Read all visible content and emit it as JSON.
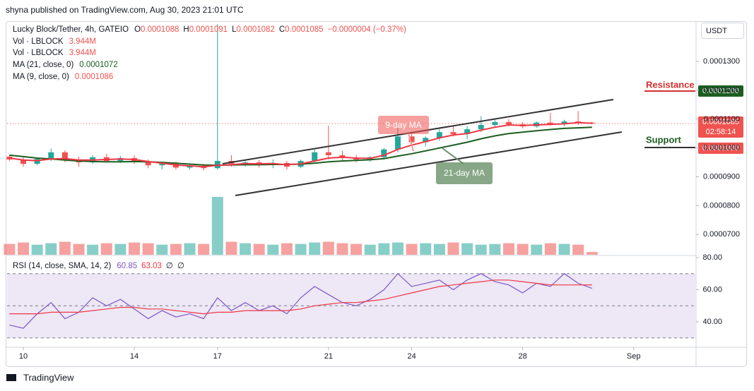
{
  "header": {
    "byline": "shyna published on TradingView.com, Aug 30, 2023 21:01 UTC",
    "symbol": "Lucky Block/Tether, 4h, GATEIO",
    "ohlc": [
      {
        "key": "O",
        "value": "0.0001088"
      },
      {
        "key": "H",
        "value": "0.0001091"
      },
      {
        "key": "L",
        "value": "0.0001082"
      },
      {
        "key": "C",
        "value": "0.0001085"
      }
    ],
    "change": "−0.0000004 (−0.37%)",
    "indicators": [
      {
        "label": "Vol · LBLOCK",
        "value": "3.944M"
      },
      {
        "label": "Vol · LBLOCK",
        "value": "3.944M"
      },
      {
        "label": "MA (21, close, 0)",
        "value": "0.0001072"
      },
      {
        "label": "MA (9, close, 0)",
        "value": "0.0001086"
      }
    ],
    "rsi_label": "RSI (14, close, SMA, 14, 2)",
    "rsi_values": [
      "60.85",
      "63.03",
      "∅",
      "∅"
    ]
  },
  "currency": "USDT",
  "price_labels": {
    "resistance": "0.0001200",
    "last": "0.0001085",
    "countdown": "02:58:14",
    "support": "0.0001000"
  },
  "annotations": {
    "resistance": "Resistance",
    "support": "Support",
    "ma9": "9-day MA",
    "ma21": "21-day MA"
  },
  "footer": "TradingView",
  "chart_data": {
    "type": "candlestick",
    "up_color": "#26a69a",
    "down_color": "#ef5350",
    "x": [
      9.5,
      10,
      10.5,
      11,
      11.5,
      12,
      12.5,
      13,
      13.5,
      14,
      14.5,
      15,
      15.5,
      16,
      16.5,
      17,
      17.5,
      18,
      18.5,
      19,
      19.5,
      20,
      20.5,
      21,
      21.5,
      22,
      22.5,
      23,
      23.5,
      24,
      24.5,
      25,
      25.5,
      26,
      26.5,
      27,
      27.5,
      28,
      28.5,
      29,
      29.5,
      30,
      30.5
    ],
    "xlim": [
      9.414,
      34.25
    ],
    "xticks": [
      10,
      14,
      17,
      21,
      24,
      28,
      {
        "value": 32,
        "label": "Sep"
      }
    ],
    "ylim": [
      6.27e-05,
      0.000144
    ],
    "yticks": [
      {
        "value": 7e-05,
        "label": "0.0000700"
      },
      {
        "value": 8e-05,
        "label": "0.0000800"
      },
      {
        "value": 9e-05,
        "label": "0.0000900"
      },
      {
        "value": 0.0001,
        "label": "0.0001000"
      },
      {
        "value": 0.00011,
        "label": "0.0001100"
      },
      {
        "value": 0.00012,
        "label": "0.0001200"
      },
      {
        "value": 0.00013,
        "label": "0.0001300"
      }
    ],
    "open": [
      9.7e-05,
      9.6e-05,
      9.45e-05,
      9.62e-05,
      9.85e-05,
      9.58e-05,
      9.5e-05,
      9.68e-05,
      9.55e-05,
      9.65e-05,
      9.52e-05,
      9.4e-05,
      9.45e-05,
      9.32e-05,
      9.38e-05,
      9.3e-05,
      9.55e-05,
      9.45e-05,
      9.5e-05,
      9.42e-05,
      9.48e-05,
      9.35e-05,
      9.55e-05,
      9.85e-05,
      9.75e-05,
      9.65e-05,
      9.6e-05,
      9.68e-05,
      9.95e-05,
      0.000104,
      0.000102,
      0.0001035,
      0.0001055,
      0.0001048,
      0.0001065,
      0.000108,
      0.000109,
      0.0001082,
      0.0001075,
      0.0001088,
      0.0001082,
      0.0001092,
      0.0001088
    ],
    "high": [
      9.75e-05,
      9.68e-05,
      9.65e-05,
      9.98e-05,
      9.92e-05,
      9.7e-05,
      9.75e-05,
      9.8e-05,
      9.72e-05,
      9.75e-05,
      9.6e-05,
      9.5e-05,
      9.52e-05,
      9.45e-05,
      9.45e-05,
      0.000143,
      9.75e-05,
      9.6e-05,
      9.58e-05,
      9.6e-05,
      9.55e-05,
      9.6e-05,
      9.95e-05,
      0.0001078,
      9.9e-05,
      9.75e-05,
      9.72e-05,
      0.0001,
      0.000107,
      0.000105,
      0.000104,
      0.0001065,
      0.000108,
      0.0001075,
      0.000111,
      0.0001098,
      0.00011,
      0.000109,
      0.0001092,
      0.0001122,
      0.0001098,
      0.0001128,
      0.0001091
    ],
    "low": [
      9.55e-05,
      9.35e-05,
      9.4e-05,
      9.55e-05,
      9.5e-05,
      9.35e-05,
      9.45e-05,
      9.5e-05,
      9.48e-05,
      9.45e-05,
      9.3e-05,
      9.25e-05,
      9.25e-05,
      9.25e-05,
      9.22e-05,
      9.25e-05,
      9.35e-05,
      9.35e-05,
      9.32e-05,
      9.3e-05,
      9.25e-05,
      9.3e-05,
      9.5e-05,
      9.6e-05,
      9.55e-05,
      9.5e-05,
      9.52e-05,
      9.6e-05,
      9.85e-05,
      0.000101,
      0.0001005,
      0.0001025,
      0.000104,
      0.000103,
      0.0001055,
      0.000107,
      0.0001075,
      0.0001068,
      0.000107,
      0.0001078,
      0.0001075,
      0.000108,
      0.0001082
    ],
    "close": [
      9.6e-05,
      9.45e-05,
      9.62e-05,
      9.85e-05,
      9.58e-05,
      9.5e-05,
      9.68e-05,
      9.55e-05,
      9.65e-05,
      9.52e-05,
      9.4e-05,
      9.45e-05,
      9.32e-05,
      9.38e-05,
      9.3e-05,
      9.55e-05,
      9.45e-05,
      9.5e-05,
      9.42e-05,
      9.48e-05,
      9.35e-05,
      9.55e-05,
      9.85e-05,
      9.75e-05,
      9.65e-05,
      9.6e-05,
      9.68e-05,
      9.95e-05,
      0.000104,
      0.000102,
      0.0001035,
      0.0001055,
      0.0001048,
      0.0001065,
      0.000108,
      0.000109,
      0.0001082,
      0.0001075,
      0.0001088,
      0.0001082,
      0.0001092,
      0.0001088,
      0.0001085
    ],
    "series": [
      {
        "name": "MA (21, close, 0)",
        "color": "#1b5e20",
        "values": [
          9.75e-05,
          9.7e-05,
          9.65e-05,
          9.62e-05,
          9.58e-05,
          9.55e-05,
          9.53e-05,
          9.52e-05,
          9.52e-05,
          9.53e-05,
          9.52e-05,
          9.5e-05,
          9.47e-05,
          9.44e-05,
          9.41e-05,
          9.4e-05,
          9.41e-05,
          9.42e-05,
          9.42e-05,
          9.43e-05,
          9.43e-05,
          9.44e-05,
          9.47e-05,
          9.52e-05,
          9.55e-05,
          9.57e-05,
          9.59e-05,
          9.63e-05,
          9.72e-05,
          9.8e-05,
          9.9e-05,
          0.0001,
          0.000101,
          0.000102,
          0.0001032,
          0.0001042,
          0.000105,
          0.0001055,
          0.000106,
          0.0001064,
          0.0001068,
          0.000107,
          0.0001072
        ]
      },
      {
        "name": "MA (9, close, 0)",
        "color": "#f23645",
        "values": [
          9.65e-05,
          9.58e-05,
          9.56e-05,
          9.62e-05,
          9.63e-05,
          9.58e-05,
          9.58e-05,
          9.6e-05,
          9.62e-05,
          9.6e-05,
          9.53e-05,
          9.47e-05,
          9.41e-05,
          9.38e-05,
          9.35e-05,
          9.4e-05,
          9.42e-05,
          9.46e-05,
          9.45e-05,
          9.46e-05,
          9.42e-05,
          9.45e-05,
          9.55e-05,
          9.65e-05,
          9.68e-05,
          9.65e-05,
          9.64e-05,
          9.75e-05,
          9.95e-05,
          0.000101,
          0.0001022,
          0.0001035,
          0.0001045,
          0.000105,
          0.0001062,
          0.0001072,
          0.000108,
          0.0001078,
          0.000108,
          0.0001082,
          0.0001084,
          0.0001088,
          0.0001086
        ]
      }
    ],
    "volume": [
      15,
      17,
      14,
      16,
      18,
      15,
      14,
      16,
      15,
      17,
      16,
      14,
      15,
      16,
      15,
      80,
      18,
      16,
      15,
      14,
      16,
      15,
      17,
      18,
      16,
      15,
      14,
      16,
      17,
      15,
      16,
      15,
      17,
      16,
      14,
      15,
      16,
      15,
      14,
      16,
      15,
      14,
      3.944
    ],
    "rsi": {
      "ylim": [
        24.2,
        81.3
      ],
      "yticks": [
        {
          "value": 40,
          "label": "40.00"
        },
        {
          "value": 60,
          "label": "60.00"
        },
        {
          "value": 80,
          "label": "80.00"
        }
      ],
      "bands": [
        30,
        50,
        70
      ],
      "band_color": "#ede7f6",
      "series": [
        {
          "name": "RSI",
          "color": "#7e57c2",
          "values": [
            38,
            36,
            45,
            52,
            42,
            46,
            55,
            50,
            54,
            48,
            42,
            47,
            43,
            45,
            42,
            55,
            47,
            52,
            47,
            50,
            45,
            55,
            62,
            57,
            52,
            50,
            54,
            60,
            70,
            62,
            64,
            66,
            60,
            66,
            70,
            65,
            63,
            58,
            64,
            62,
            70,
            64,
            60.85
          ]
        },
        {
          "name": "RSI-based MA",
          "color": "#f23645",
          "values": [
            45,
            45,
            45,
            46,
            46,
            46,
            47,
            48,
            49,
            49,
            48,
            48,
            47,
            46,
            45,
            46,
            46,
            47,
            47,
            47,
            47,
            48,
            50,
            51,
            52,
            52,
            53,
            54,
            56,
            58,
            60,
            62,
            63,
            64,
            65,
            66,
            66,
            65,
            64,
            63,
            63,
            63,
            63.03
          ]
        }
      ]
    }
  }
}
